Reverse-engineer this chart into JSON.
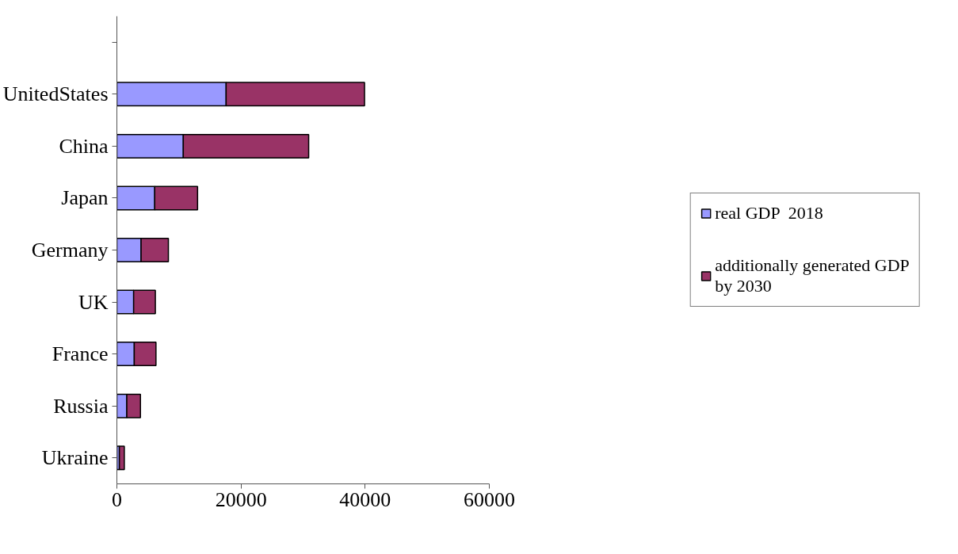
{
  "chart_data": {
    "type": "bar",
    "orientation": "horizontal",
    "stacked": true,
    "categories": [
      null,
      "UnitedStates",
      "China",
      "Japan",
      "Germany",
      "UK",
      "France",
      "Russia",
      "Ukraine"
    ],
    "series": [
      {
        "name": "real GDP  2018",
        "color": "#9999ff",
        "values": [
          null,
          17600,
          10700,
          6100,
          3900,
          2700,
          2800,
          1600,
          400
        ]
      },
      {
        "name": "additionally generated GDP by 2030",
        "color": "#993366",
        "values": [
          null,
          22300,
          20200,
          6900,
          4400,
          3500,
          3500,
          2200,
          800
        ]
      }
    ],
    "xlim": [
      0,
      60000
    ],
    "xticks": [
      0,
      20000,
      40000,
      60000
    ],
    "grid": false,
    "legend": "right"
  }
}
